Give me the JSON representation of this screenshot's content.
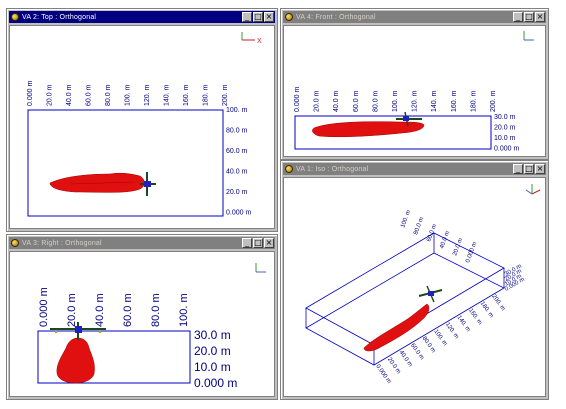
{
  "colors": {
    "title_active": "#000080",
    "title_inactive": "#808080",
    "grid": "#0000c0",
    "plume": "#e01010",
    "aircraft_body": "#1a4a1a",
    "aircraft_nose": "#2020c0"
  },
  "windows": {
    "top": {
      "title": "VA 2: Top : Orthogonal",
      "axes_label": "X",
      "x_ticks": [
        "0.000 m",
        "20.0 m",
        "40.0 m",
        "60.0 m",
        "80.0 m",
        "100. m",
        "120. m",
        "140. m",
        "160. m",
        "180. m",
        "200. m"
      ],
      "y_ticks": [
        "100. m",
        "80.0 m",
        "60.0 m",
        "40.0 m",
        "20.0 m",
        "0.000 m"
      ]
    },
    "front": {
      "title": "VA 4: Front : Orthogonal",
      "x_ticks": [
        "0.000 m",
        "20.0 m",
        "40.0 m",
        "60.0 m",
        "80.0 m",
        "100. m",
        "120. m",
        "140. m",
        "160. m",
        "180. m",
        "200. m"
      ],
      "y_ticks": [
        "30.0 m",
        "20.0 m",
        "10.0 m",
        "0.000 m"
      ]
    },
    "right": {
      "title": "VA 3: Right : Orthogonal",
      "x_ticks": [
        "0.000 m",
        "20.0 m",
        "40.0 m",
        "60.0 m",
        "80.0 m",
        "100. m"
      ],
      "y_ticks": [
        "30.0 m",
        "20.0 m",
        "10.0 m",
        "0.000 m"
      ]
    },
    "iso": {
      "title": "VA 1: Iso : Orthogonal",
      "top_ticks": [
        "100. m",
        "80.0 m",
        "60.0 m",
        "40.0 m",
        "20.0 m",
        "0.000 m"
      ],
      "right_ticks": [
        "30.0 m",
        "20.0 m",
        "10.0 m",
        "0.000 m"
      ],
      "front_ticks": [
        "200. m",
        "180. m",
        "160. m",
        "140. m",
        "120. m",
        "100. m",
        "80.0 m",
        "60.0 m",
        "40.0 m",
        "20.0 m",
        "0.000 m"
      ]
    }
  },
  "controls": {
    "minimize": "_",
    "maximize": "□",
    "close": "×"
  }
}
